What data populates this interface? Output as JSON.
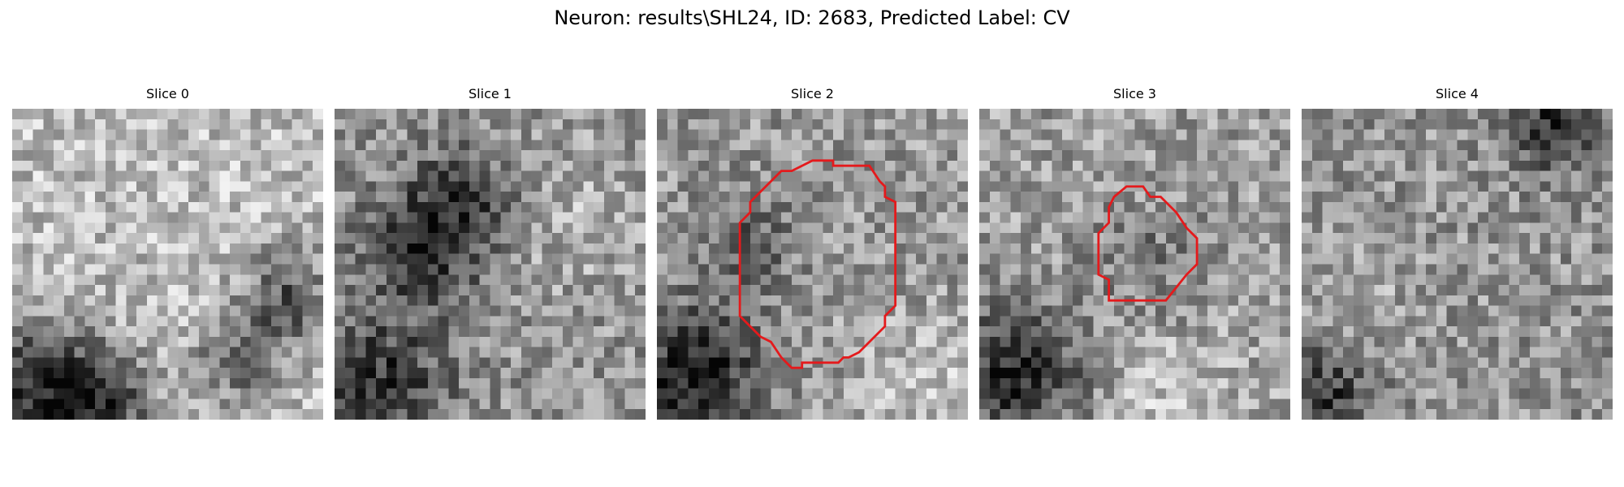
{
  "figure": {
    "title": "Neuron: results\\SHL24, ID: 2683, Predicted Label: CV"
  },
  "panels": [
    {
      "title": "Slice 0",
      "has_contour": false,
      "seed": 11,
      "dark_regions": "bottom-left and right band"
    },
    {
      "title": "Slice 1",
      "has_contour": false,
      "seed": 23,
      "dark_regions": "upper-left and bottom-left"
    },
    {
      "title": "Slice 2",
      "has_contour": true,
      "seed": 37,
      "dark_regions": "bottom-left"
    },
    {
      "title": "Slice 3",
      "has_contour": true,
      "seed": 41,
      "dark_regions": "bottom-left"
    },
    {
      "title": "Slice 4",
      "has_contour": false,
      "seed": 53,
      "dark_regions": "top-right and bottom-left"
    }
  ],
  "colors": {
    "contour": "#e41a1c"
  }
}
